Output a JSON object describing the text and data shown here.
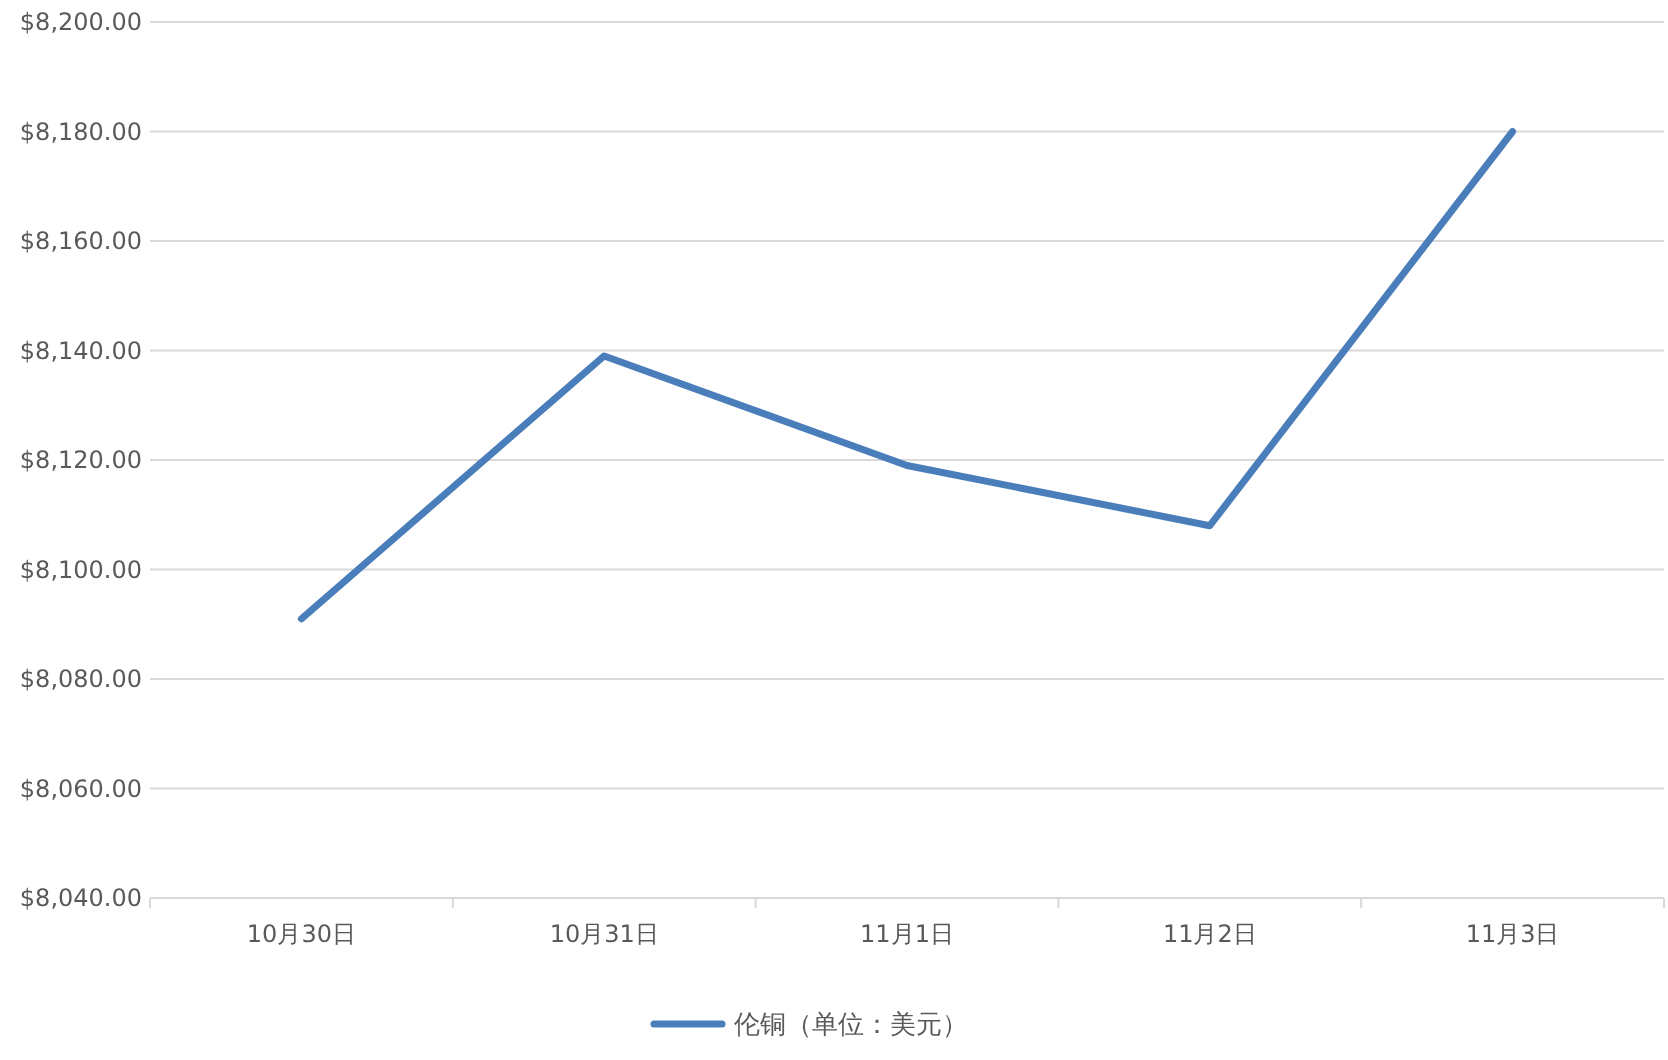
{
  "chart_data": {
    "type": "line",
    "categories": [
      "10月30日",
      "10月31日",
      "11月1日",
      "11月2日",
      "11月3日"
    ],
    "series": [
      {
        "name": "伦铜（单位：美元）",
        "color": "#4a7ebb",
        "values": [
          8091,
          8139,
          8119,
          8108,
          8180
        ]
      }
    ],
    "ylim": [
      8040,
      8200
    ],
    "yticks": [
      {
        "value": 8040,
        "label": "$8,040.00"
      },
      {
        "value": 8060,
        "label": "$8,060.00"
      },
      {
        "value": 8080,
        "label": "$8,080.00"
      },
      {
        "value": 8100,
        "label": "$8,100.00"
      },
      {
        "value": 8120,
        "label": "$8,120.00"
      },
      {
        "value": 8140,
        "label": "$8,140.00"
      },
      {
        "value": 8160,
        "label": "$8,160.00"
      },
      {
        "value": 8180,
        "label": "$8,180.00"
      },
      {
        "value": 8200,
        "label": "$8,200.00"
      }
    ],
    "grid": "y",
    "legend": "bottom",
    "marker": "none",
    "line_style": "solid"
  }
}
